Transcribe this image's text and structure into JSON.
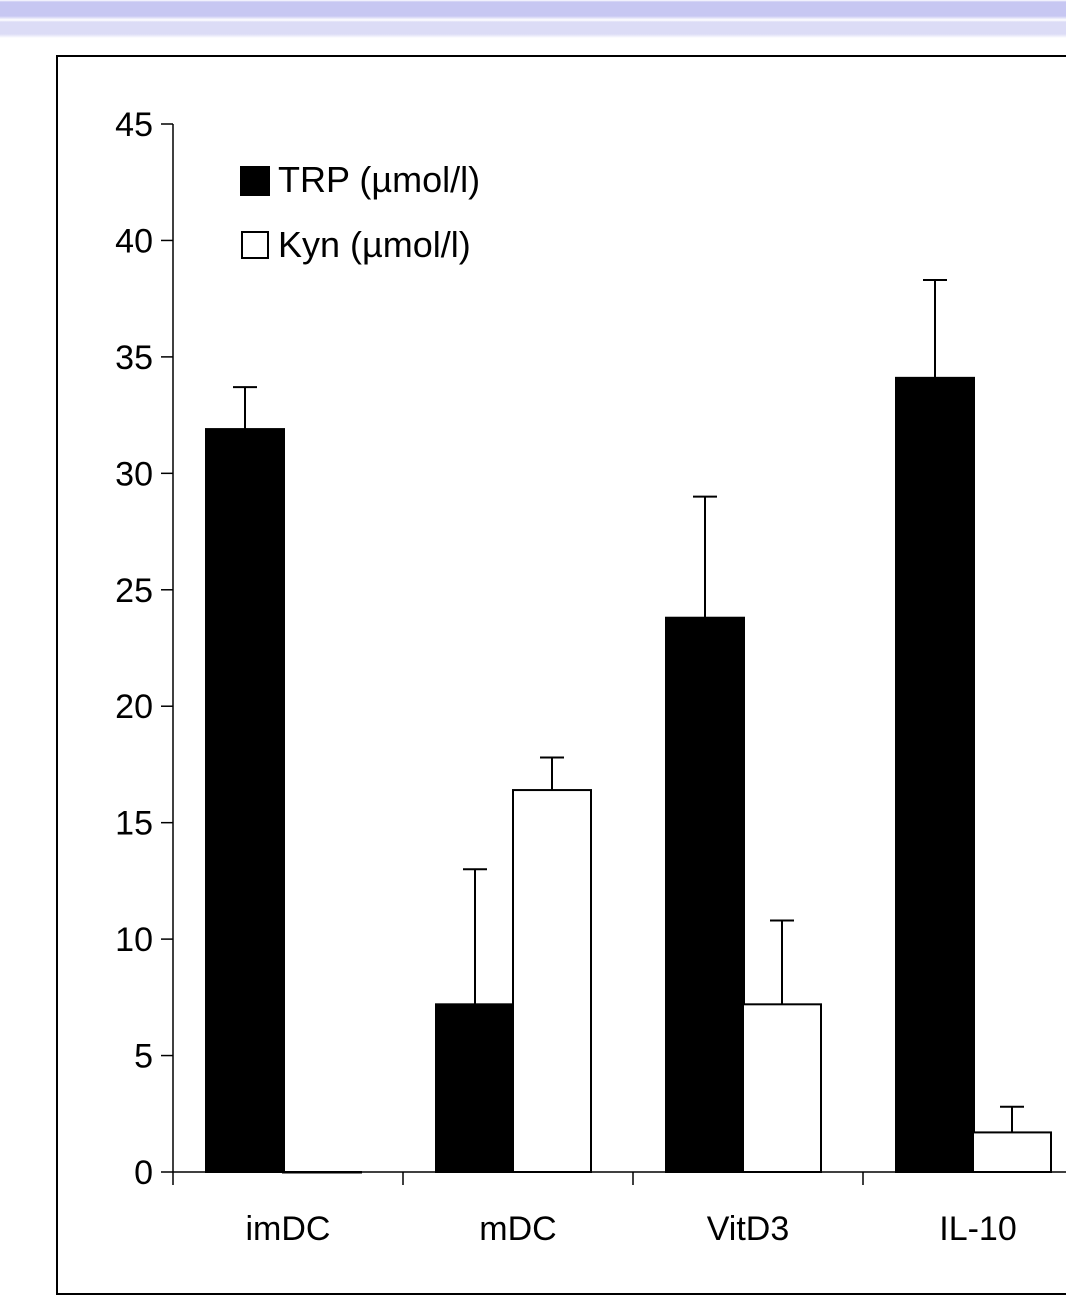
{
  "chart_data": {
    "type": "bar",
    "categories": [
      "imDC",
      "mDC",
      "VitD3",
      "IL-10"
    ],
    "series": [
      {
        "name": "TRP (µmol/l)",
        "fill": "#000000",
        "values": [
          31.9,
          7.2,
          23.8,
          34.1
        ],
        "errors": [
          1.8,
          5.8,
          5.2,
          4.2
        ]
      },
      {
        "name": "Kyn (µmol/l)",
        "fill": "#ffffff",
        "values": [
          0.0,
          16.4,
          7.2,
          1.7
        ],
        "errors": [
          0,
          1.4,
          3.6,
          1.1
        ]
      }
    ],
    "yticks": [
      "0",
      "5",
      "10",
      "15",
      "20",
      "25",
      "30",
      "35",
      "40",
      "45"
    ],
    "ylim": [
      0,
      45
    ],
    "xlabel": "",
    "ylabel": "",
    "legend_position": "top-left",
    "grid": false
  }
}
